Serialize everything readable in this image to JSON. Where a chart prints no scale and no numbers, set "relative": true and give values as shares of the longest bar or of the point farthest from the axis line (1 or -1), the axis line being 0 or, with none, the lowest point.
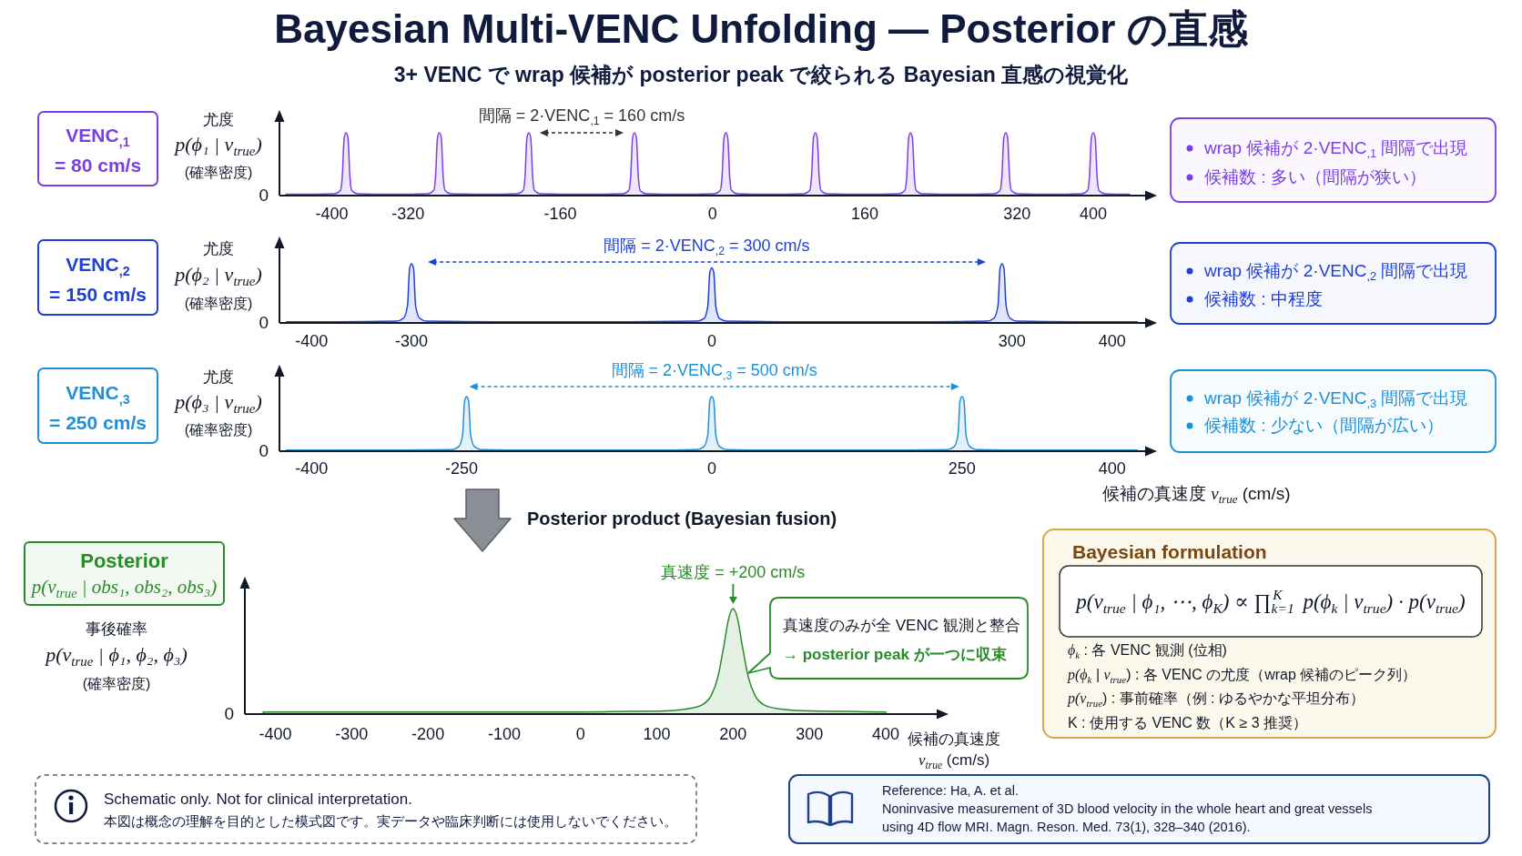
{
  "chart_data": [
    {
      "type": "area",
      "title": "Bayesian Multi-VENC Unfolding — Posterior の直感",
      "subtitle": "3+ VENC で wrap 候補が posterior peak で絞られる Bayesian 直感の視覚化",
      "ylabel": "尤度\np(ϕ₁ | v$_{true}$)\n(確率密度)",
      "annotations": [
        "0",
        "VENC$_{,1}$\n= 80 cm/s",
        "間隔 = 2·VENC$_{,1}$ = 160 cm/s",
        "wrap 候補が 2·VENC$_{,1}$ 間隔で出現",
        "候補数 : 多い（間隔が狭い）"
      ],
      "relative": true,
      "xlim": [
        -455,
        465
      ],
      "xticks": [
        -400,
        -320,
        -160,
        0,
        160,
        320,
        400
      ],
      "x": [
        -448,
        -397,
        -391,
        -389,
        -387,
        -385,
        -383,
        -381,
        -379,
        -373,
        -336,
        -299,
        -293,
        -291,
        -289,
        -287,
        -285,
        -283,
        -281,
        -275,
        -240,
        -205,
        -199,
        -197,
        -195,
        -193,
        -191,
        -189,
        -187,
        -181,
        -138,
        -94,
        -88,
        -86,
        -84,
        -82,
        -80,
        -78,
        -76,
        -70,
        -34,
        2,
        8,
        10,
        12,
        14,
        16,
        18,
        20,
        26,
        61,
        96,
        102,
        104,
        106,
        108,
        110,
        112,
        114,
        120,
        158,
        196,
        202,
        204,
        206,
        208,
        210,
        212,
        214,
        220,
        258,
        296,
        302,
        304,
        306,
        308,
        310,
        312,
        314,
        320,
        354,
        388,
        394,
        396,
        398,
        400,
        402,
        404,
        406,
        412,
        438
      ],
      "series": [
        {
          "color": "#7a3fe6",
          "values": [
            0.02,
            0.03,
            0.08,
            0.3,
            0.92,
            1,
            0.92,
            0.3,
            0.08,
            0.03,
            0.02,
            0.03,
            0.08,
            0.3,
            0.92,
            1,
            0.92,
            0.3,
            0.08,
            0.03,
            0.02,
            0.03,
            0.08,
            0.3,
            0.92,
            1,
            0.92,
            0.3,
            0.08,
            0.03,
            0.02,
            0.03,
            0.08,
            0.3,
            0.92,
            1,
            0.92,
            0.3,
            0.08,
            0.03,
            0.02,
            0.03,
            0.08,
            0.3,
            0.92,
            1,
            0.92,
            0.3,
            0.08,
            0.03,
            0.02,
            0.03,
            0.08,
            0.3,
            0.92,
            1,
            0.92,
            0.3,
            0.08,
            0.03,
            0.02,
            0.03,
            0.08,
            0.3,
            0.92,
            1,
            0.92,
            0.3,
            0.08,
            0.03,
            0.02,
            0.03,
            0.08,
            0.3,
            0.92,
            1,
            0.92,
            0.3,
            0.08,
            0.03,
            0.02,
            0.03,
            0.08,
            0.3,
            0.92,
            1,
            0.92,
            0.3,
            0.08,
            0.03,
            0.02
          ]
        }
      ]
    },
    {
      "type": "area",
      "ylabel": "尤度\np(ϕ₂ | v$_{true}$)\n(確率密度)",
      "annotations": [
        "0",
        "VENC$_{,2}$\n= 150 cm/s",
        "間隔 = 2·VENC$_{,2}$ = 300 cm/s",
        "wrap 候補が 2·VENC$_{,2}$ 間隔で出現",
        "候補数 : 中程度"
      ],
      "relative": true,
      "xlim": [
        -432,
        443
      ],
      "xticks": [
        -400,
        -300,
        0,
        300,
        400
      ],
      "x": [
        -425,
        -375,
        -315,
        -308,
        -304,
        -302,
        -300,
        -298,
        -296,
        -292,
        -285,
        -220,
        -150,
        -80,
        -15,
        -8,
        -4,
        -2,
        0,
        2,
        4,
        8,
        15,
        80,
        150,
        220,
        275,
        282,
        286,
        288,
        290,
        292,
        294,
        298,
        305,
        365,
        425
      ],
      "series": [
        {
          "color": "#1f3fd6",
          "values": [
            0.02,
            0.02,
            0.03,
            0.08,
            0.3,
            0.92,
            1,
            0.92,
            0.3,
            0.08,
            0.03,
            0.02,
            0.02,
            0.02,
            0.03,
            0.07,
            0.28,
            0.85,
            0.93,
            0.85,
            0.28,
            0.07,
            0.03,
            0.02,
            0.02,
            0.02,
            0.03,
            0.08,
            0.3,
            0.92,
            1,
            0.92,
            0.3,
            0.08,
            0.03,
            0.02,
            0.02
          ]
        }
      ]
    },
    {
      "type": "area",
      "ylabel": "尤度\np(ϕ₃ | v$_{true}$)\n(確率密度)",
      "xlabel": "候補の真速度  v$_{true}$ (cm/s)",
      "annotations": [
        "0",
        "VENC$_{,3}$\n= 250 cm/s",
        "間隔 = 2·VENC$_{,3}$ = 500 cm/s",
        "wrap 候補が 2·VENC$_{,3}$ 間隔で出現",
        "候補数 : 少ない（間隔が広い）"
      ],
      "relative": true,
      "xlim": [
        -432,
        443
      ],
      "xticks": [
        -400,
        -250,
        0,
        250,
        400
      ],
      "x": [
        -425,
        -380,
        -320,
        -260,
        -253,
        -249,
        -247,
        -245,
        -243,
        -241,
        -237,
        -230,
        -180,
        -120,
        -60,
        -15,
        -8,
        -4,
        -2,
        0,
        2,
        4,
        8,
        15,
        60,
        120,
        180,
        235,
        242,
        246,
        248,
        250,
        252,
        254,
        258,
        265,
        320,
        375,
        425
      ],
      "series": [
        {
          "color": "#1e90d8",
          "values": [
            0.02,
            0.02,
            0.02,
            0.03,
            0.08,
            0.3,
            0.92,
            1,
            0.92,
            0.3,
            0.08,
            0.03,
            0.02,
            0.02,
            0.02,
            0.03,
            0.08,
            0.3,
            0.92,
            1,
            0.92,
            0.3,
            0.08,
            0.03,
            0.02,
            0.02,
            0.02,
            0.03,
            0.08,
            0.3,
            0.92,
            1,
            0.92,
            0.3,
            0.08,
            0.03,
            0.02,
            0.02,
            0.02
          ]
        }
      ]
    },
    {
      "type": "area",
      "title": "Posterior\np(v$_{true}$ | obs₁, obs₂, obs₃)",
      "subtitle": "Posterior product (Bayesian fusion)",
      "ylabel": "事後確率\np(v$_{true}$ | ϕ₁, ϕ₂, ϕ₃)\n(確率密度)",
      "xlabel": "候補の真速度\nv$_{true}$ (cm/s)",
      "annotations": [
        "0",
        {
          "text": "真速度 = +200 cm/s",
          "x": 200,
          "y": 1
        },
        "真速度のみが全 VENC 観測と整合\n→ posterior peak が一つに収束"
      ],
      "relative": true,
      "xlim": [
        -440,
        480
      ],
      "xticks": [
        -400,
        -300,
        -200,
        -100,
        0,
        100,
        200,
        300,
        400
      ],
      "x": [
        -416,
        -350,
        -280,
        -210,
        -140,
        -70,
        0,
        60,
        110,
        140,
        160,
        170,
        180,
        188,
        194,
        200,
        206,
        212,
        220,
        230,
        240,
        260,
        300,
        350,
        400
      ],
      "series": [
        {
          "color": "#2a8a2a",
          "values": [
            0.02,
            0.02,
            0.02,
            0.02,
            0.02,
            0.02,
            0.02,
            0.025,
            0.03,
            0.05,
            0.09,
            0.16,
            0.35,
            0.65,
            0.9,
            1,
            0.9,
            0.65,
            0.35,
            0.16,
            0.09,
            0.05,
            0.03,
            0.025,
            0.02
          ]
        }
      ]
    },
    {
      "type": "other",
      "title": "Bayesian formulation",
      "annotations": [
        "p(v$_{true}$ | ϕ₁, ⋯, ϕ$_{K}$)  ∝  ∏$_{k=1}$$^{K}$ p(ϕ$_{k}$ | v$_{true}$) · p(v$_{true}$)",
        "ϕ$_{k}$ : 各 VENC 観測 (位相)",
        "p(ϕ$_{k}$ | v$_{true}$) : 各 VENC の尤度（wrap 候補のピーク列）",
        "p(v$_{true}$) : 事前確率（例 : ゆるやかな平坦分布）",
        "K : 使用する VENC 数（K ≥ 3 推奨）"
      ]
    },
    {
      "type": "other",
      "annotations": [
        "Schematic only. Not for clinical interpretation.",
        "本図は概念の理解を目的とした模式図です。実データや臨床判断には使用しないでください。"
      ]
    },
    {
      "type": "other",
      "annotations": [
        "Reference: Ha, A. et al.",
        "Noninvasive measurement of 3D blood velocity in the whole heart and great vessels",
        "using 4D flow MRI. Magn. Reson. Med. 73(1), 328–340 (2016)."
      ]
    }
  ]
}
